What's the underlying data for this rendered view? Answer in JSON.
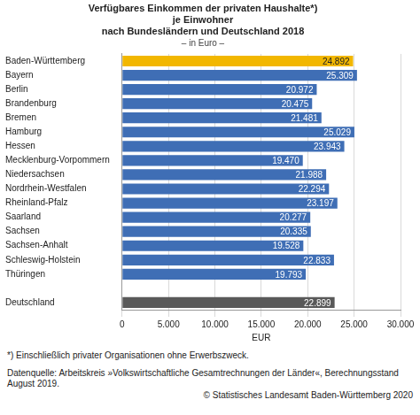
{
  "chart_data": {
    "type": "bar",
    "orientation": "horizontal",
    "title": [
      "Verfügbares Einkommen der privaten Haushalte*)",
      "je Einwohner",
      "nach Bundesländern und Deutschland 2018"
    ],
    "subtitle": "– in Euro –",
    "categories": [
      "Baden-Württemberg",
      "Bayern",
      "Berlin",
      "Brandenburg",
      "Bremen",
      "Hamburg",
      "Hessen",
      "Mecklenburg-Vorpommern",
      "Niedersachsen",
      "Nordrhein-Westfalen",
      "Rheinland-Pfalz",
      "Saarland",
      "Sachsen",
      "Sachsen-Anhalt",
      "Schleswig-Holstein",
      "Thüringen",
      null,
      "Deutschland"
    ],
    "values": [
      24892,
      25309,
      20972,
      20475,
      21481,
      25029,
      23943,
      19470,
      21988,
      22294,
      23197,
      20277,
      20335,
      19528,
      22833,
      19793,
      null,
      22899
    ],
    "value_labels": [
      "24.892",
      "25.309",
      "20.972",
      "20.475",
      "21.481",
      "25.029",
      "23.943",
      "19.470",
      "21.988",
      "22.294",
      "23.197",
      "20.277",
      "20.335",
      "19.528",
      "22.833",
      "19.793",
      null,
      "22.899"
    ],
    "colors": [
      "#f2b700",
      "#3f6eb5",
      "#3f6eb5",
      "#3f6eb5",
      "#3f6eb5",
      "#3f6eb5",
      "#3f6eb5",
      "#3f6eb5",
      "#3f6eb5",
      "#3f6eb5",
      "#3f6eb5",
      "#3f6eb5",
      "#3f6eb5",
      "#3f6eb5",
      "#3f6eb5",
      "#3f6eb5",
      null,
      "#595959"
    ],
    "data_labels": true,
    "x_label": "EUR",
    "xlim": [
      0,
      30000
    ],
    "xticks": [
      0,
      {
        "value": 5000,
        "label": "5.000"
      },
      {
        "value": 10000,
        "label": "10.000"
      },
      {
        "value": 15000,
        "label": "15.000"
      },
      {
        "value": 20000,
        "label": "20.000"
      },
      {
        "value": 25000,
        "label": "25.000"
      },
      {
        "value": 30000,
        "label": "30.000"
      }
    ],
    "grid": true,
    "footnote": "*) Einschließlich privater Organisationen ohne Erwerbszweck.",
    "source": "Datenquelle: Arbeitskreis »Volkswirtschaftliche Gesamtrechnungen der Länder«, Berechnungsstand August 2019.",
    "copyright": "© Statistisches Landesamt Baden-Württemberg 2020"
  }
}
